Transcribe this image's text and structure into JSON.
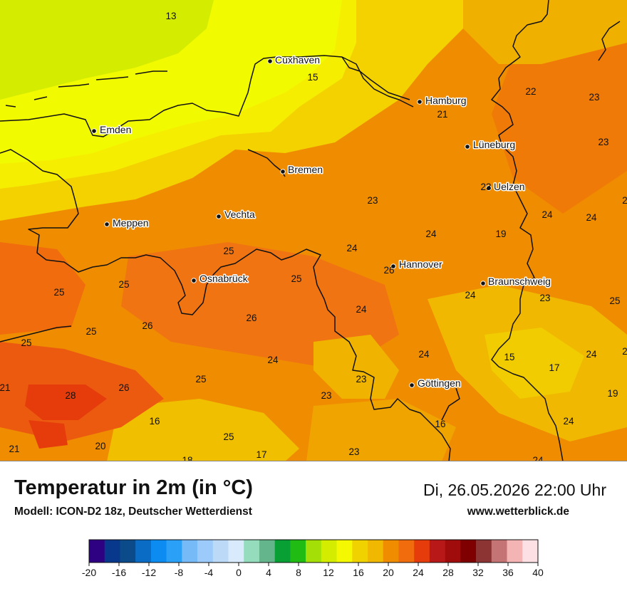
{
  "title": "Temperatur in 2m (in °C)",
  "subtitle": "Modell: ICON-D2 18z, Deutscher Wetterdienst",
  "datetime": "Di, 26.05.2026 22:00 Uhr",
  "site": "www.wetterblick.de",
  "cities": [
    {
      "name": "Cuxhaven",
      "id": "cuxhaven"
    },
    {
      "name": "Hamburg",
      "id": "hamburg"
    },
    {
      "name": "Emden",
      "id": "emden"
    },
    {
      "name": "Lüneburg",
      "id": "lueneburg"
    },
    {
      "name": "Bremen",
      "id": "bremen"
    },
    {
      "name": "Uelzen",
      "id": "uelzen"
    },
    {
      "name": "Vechta",
      "id": "vechta"
    },
    {
      "name": "Meppen",
      "id": "meppen"
    },
    {
      "name": "Hannover",
      "id": "hannover"
    },
    {
      "name": "Osnabrück",
      "id": "osnabrueck"
    },
    {
      "name": "Braunschweig",
      "id": "braunschweig"
    },
    {
      "name": "Göttingen",
      "id": "goettingen"
    }
  ],
  "temperature_labels": [
    "13",
    "15",
    "22",
    "23",
    "21",
    "23",
    "23",
    "23",
    "24",
    "24",
    "24",
    "19",
    "25",
    "24",
    "26",
    "25",
    "25",
    "25",
    "24",
    "25",
    "23",
    "24",
    "26",
    "25",
    "26",
    "25",
    "24",
    "24",
    "15",
    "17",
    "24",
    "21",
    "28",
    "26",
    "25",
    "23",
    "23",
    "19",
    "16",
    "16",
    "24",
    "21",
    "20",
    "17",
    "23",
    "18",
    "24",
    "25",
    "24",
    "2",
    "2"
  ],
  "legend": {
    "unit": "°C",
    "colors": [
      "#2e0082",
      "#08388c",
      "#0c4b8a",
      "#0a6cc4",
      "#0c8cf0",
      "#2aa0f6",
      "#76baf8",
      "#9ccafa",
      "#bcdaf8",
      "#d8eafc",
      "#94dcbc",
      "#64b48c",
      "#08a034",
      "#20bc14",
      "#a4e008",
      "#d4ec00",
      "#f4f800",
      "#f0d200",
      "#f0b800",
      "#f08c00",
      "#f06c0c",
      "#e63c0c",
      "#b81818",
      "#a00c0c",
      "#7e0000",
      "#8c3434",
      "#c47474",
      "#f4b4b4",
      "#fce0e4"
    ],
    "ticks": [
      "-20",
      "-16",
      "-12",
      "-8",
      "-4",
      "0",
      "4",
      "8",
      "12",
      "16",
      "20",
      "24",
      "28",
      "32",
      "36",
      "40"
    ]
  }
}
